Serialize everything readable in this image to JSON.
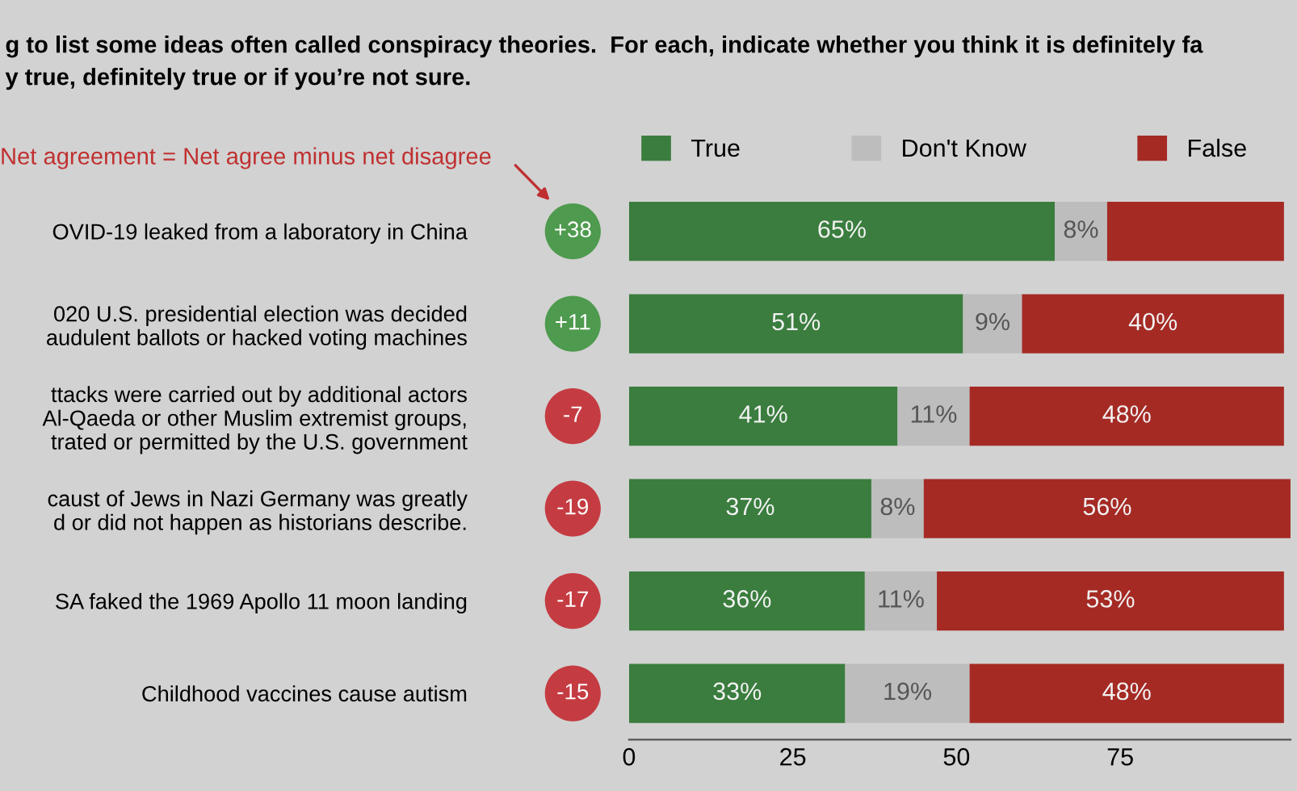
{
  "chart_data": {
    "type": "bar",
    "orientation": "horizontal",
    "stacked": true,
    "title": "g to list some ideas often called conspiracy theories.  For each, indicate whether you think it is definitely fa\ny true, definitely true or if you’re not sure.",
    "categories": [
      "OVID-19 leaked from a laboratory in China",
      "020 U.S. presidential election was decided\naudulent ballots or hacked voting machines",
      "ttacks were carried out by additional actors\nAl-Qaeda or other Muslim extremist groups,\ntrated or permitted by the U.S. government",
      "caust of Jews in Nazi Germany was greatly\nd or did not happen as historians describe.",
      "SA faked the 1969 Apollo 11 moon landing",
      "Childhood vaccines cause autism"
    ],
    "series": [
      {
        "name": "True",
        "color": "#3a7d3e",
        "values": [
          65,
          51,
          41,
          37,
          36,
          33
        ],
        "value_labels": [
          "65%",
          "51%",
          "41%",
          "37%",
          "36%",
          "33%"
        ]
      },
      {
        "name": "Don't Know",
        "color": "#bdbdbd",
        "values": [
          8,
          9,
          11,
          8,
          11,
          19
        ],
        "value_labels": [
          "8%",
          "9%",
          "11%",
          "8%",
          "11%",
          "19%"
        ]
      },
      {
        "name": "False",
        "color": "#a52a24",
        "values": [
          27,
          40,
          48,
          56,
          53,
          48
        ],
        "value_labels": [
          null,
          "40%",
          "48%",
          "56%",
          "53%",
          "48%"
        ]
      }
    ],
    "xlim": [
      0,
      101
    ],
    "xticks": [
      0,
      25,
      50,
      75
    ],
    "legend": "top",
    "grid": false,
    "annotations": [
      "Net agreement = Net agree minus net disagree",
      "+38",
      "+11",
      "-7",
      "-19",
      "-17",
      "-15"
    ]
  }
}
